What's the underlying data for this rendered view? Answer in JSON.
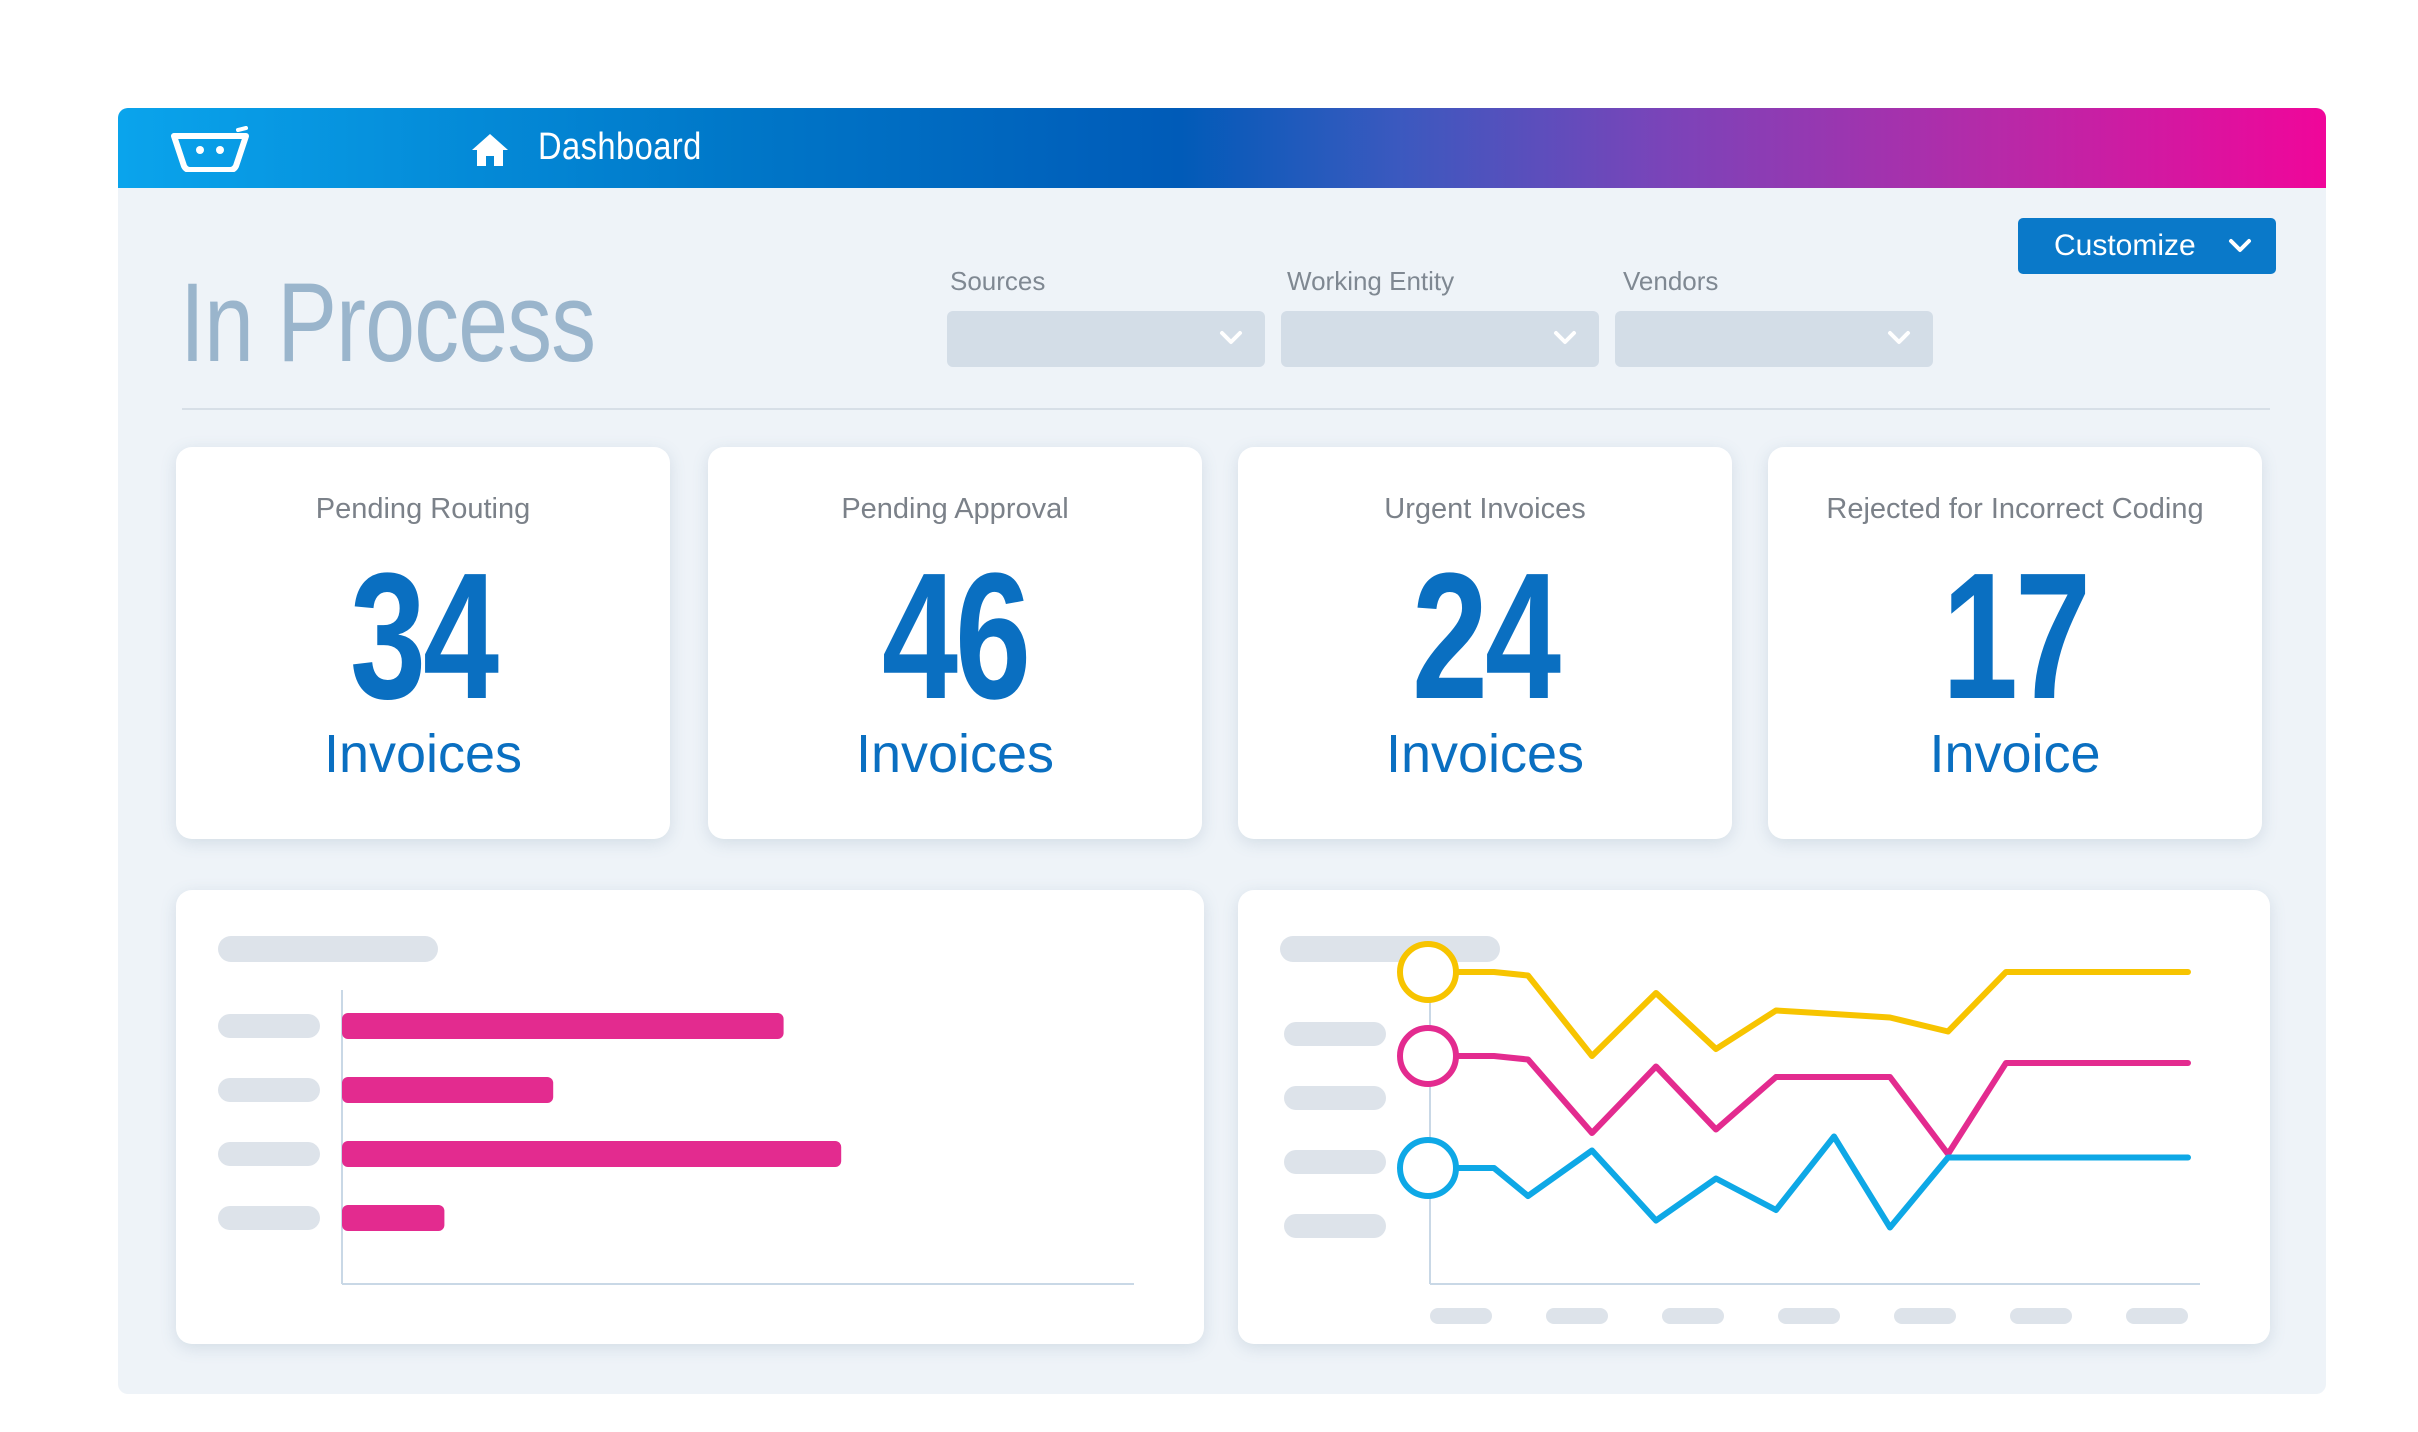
{
  "topbar": {
    "title": "Dashboard",
    "logo_icon": "basket-logo-icon",
    "home_icon": "home-icon",
    "gradient": [
      "#0aa4ec",
      "#005bb8",
      "#f0069a"
    ]
  },
  "page": {
    "title": "In Process"
  },
  "filters": [
    {
      "label": "Sources",
      "value": ""
    },
    {
      "label": "Working Entity",
      "value": ""
    },
    {
      "label": "Vendors",
      "value": ""
    }
  ],
  "customize": {
    "label": "Customize",
    "icon": "chevron-down-icon"
  },
  "kpis": [
    {
      "label": "Pending Routing",
      "value": "34",
      "unit": "Invoices"
    },
    {
      "label": "Pending Approval",
      "value": "46",
      "unit": "Invoices"
    },
    {
      "label": "Urgent Invoices",
      "value": "24",
      "unit": "Invoices"
    },
    {
      "label": "Rejected for Incorrect Coding",
      "value": "17",
      "unit": "Invoice"
    }
  ],
  "colors": {
    "accent": "#0a6fc1",
    "bar": "#e32b8f",
    "yellow": "#f7c400",
    "pink": "#e32b8f",
    "cyan": "#0ea8e6"
  },
  "chart_data": [
    {
      "type": "bar",
      "orientation": "horizontal",
      "categories": [
        "",
        "",
        "",
        ""
      ],
      "values": [
        0.69,
        0.33,
        0.78,
        0.16
      ],
      "xlim": [
        0,
        1
      ]
    },
    {
      "type": "line",
      "x": [
        0,
        1,
        2,
        3,
        4,
        5,
        6,
        7,
        8,
        9,
        10,
        11,
        12
      ],
      "ylim": [
        0,
        1
      ],
      "series": [
        {
          "color": "#f7c400",
          "values": [
            0.88,
            0.88,
            0.87,
            0.64,
            0.82,
            0.66,
            0.77,
            0.76,
            0.75,
            0.71,
            0.88,
            0.88,
            0.88
          ]
        },
        {
          "color": "#e32b8f",
          "values": [
            0.64,
            0.64,
            0.63,
            0.42,
            0.61,
            0.43,
            0.58,
            0.58,
            0.58,
            0.36,
            0.62,
            0.62,
            0.62
          ]
        },
        {
          "color": "#0ea8e6",
          "values": [
            0.32,
            0.32,
            0.24,
            0.37,
            0.17,
            0.29,
            0.2,
            0.41,
            0.15,
            0.35,
            0.35,
            0.35,
            0.35
          ]
        }
      ]
    }
  ]
}
